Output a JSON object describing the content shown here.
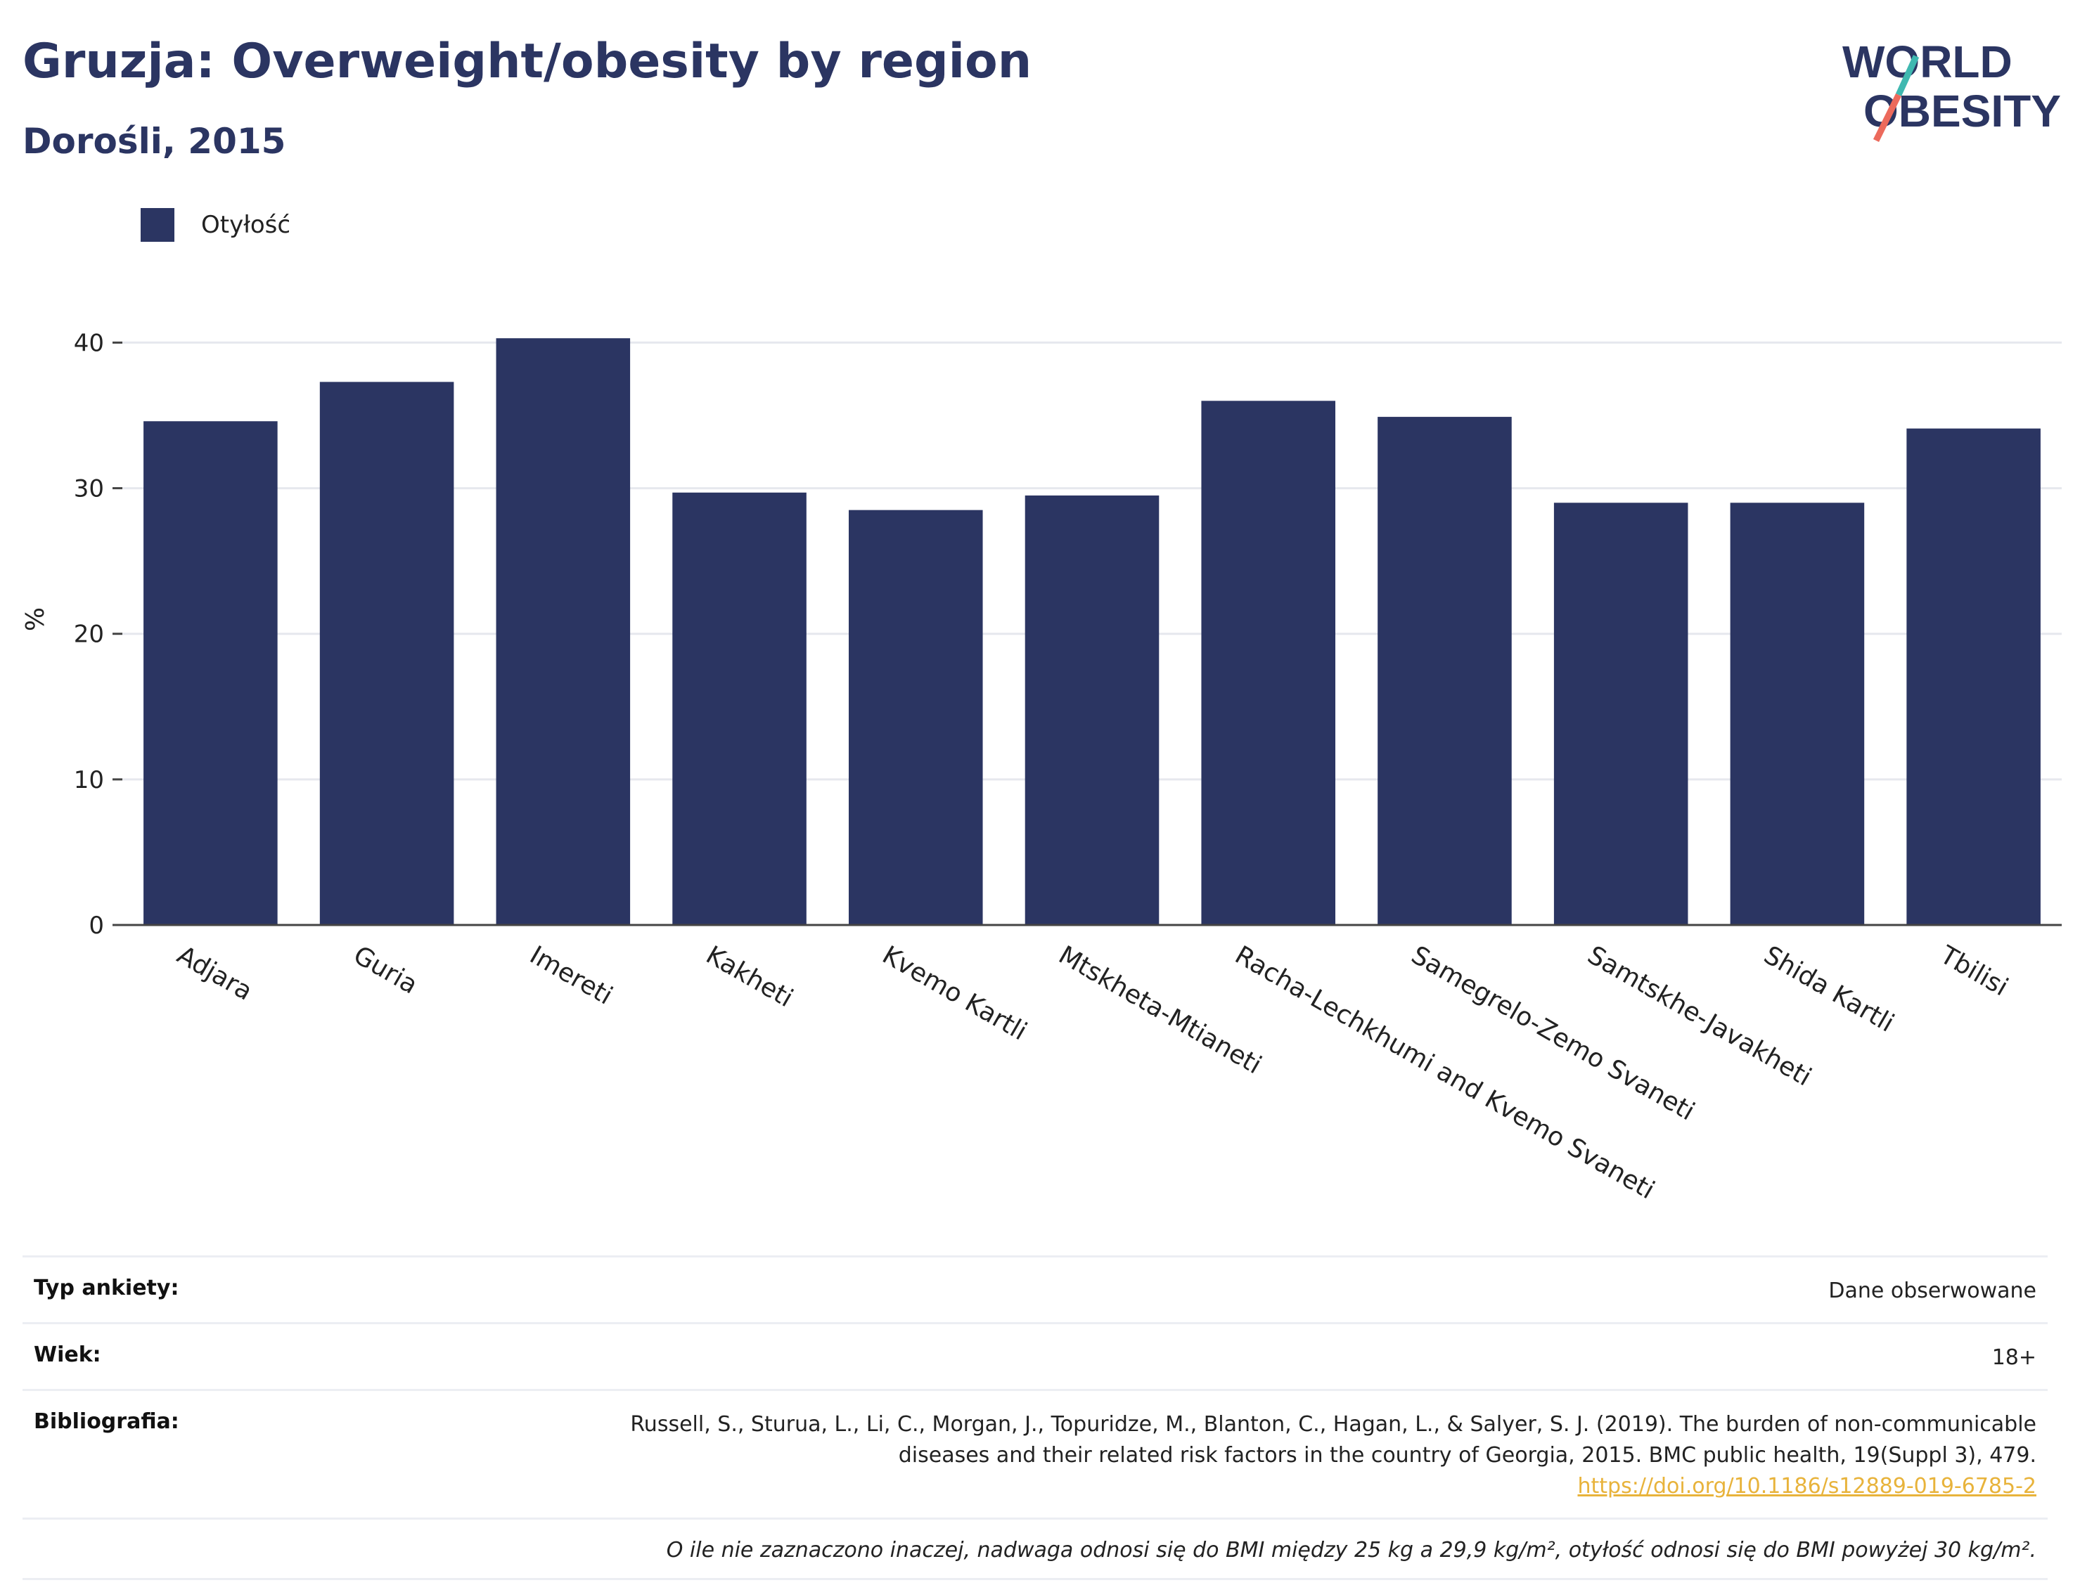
{
  "header": {
    "title": "Gruzja: Overweight/obesity by region",
    "subtitle": "Dorośli, 2015"
  },
  "logo": {
    "line1": "WORLD",
    "line2": "OBESITY",
    "colors": {
      "text": "#2b3562",
      "slash_top": "#3fb8b0",
      "slash_bottom": "#ec6a5c"
    }
  },
  "legend": {
    "label": "Otyłość",
    "color": "#2b3562"
  },
  "chart_data": {
    "type": "bar",
    "categories": [
      "Adjara",
      "Guria",
      "Imereti",
      "Kakheti",
      "Kvemo Kartli",
      "Mtskheta-Mtianeti",
      "Racha-Lechkhumi and Kvemo Svaneti",
      "Samegrelo-Zemo Svaneti",
      "Samtskhe-Javakheti",
      "Shida Kartli",
      "Tbilisi"
    ],
    "series": [
      {
        "name": "Otyłość",
        "values": [
          34.6,
          37.3,
          40.3,
          29.7,
          28.5,
          29.5,
          36.0,
          34.9,
          29.0,
          29.0,
          34.1
        ],
        "color": "#2b3562"
      }
    ],
    "ylabel": "%",
    "ylim": [
      0,
      42
    ],
    "yticks": [
      0,
      10,
      20,
      30,
      40
    ],
    "grid": true,
    "legend_position": "top-left"
  },
  "meta": {
    "survey_type_label": "Typ ankiety:",
    "survey_type_value": "Dane obserwowane",
    "age_label": "Wiek:",
    "age_value": "18+",
    "bibliography_label": "Bibliografia:",
    "bibliography_line1": "Russell, S., Sturua, L., Li, C., Morgan, J., Topuridze, M., Blanton, C., Hagan, L., & Salyer, S. J. (2019). The burden of non-communicable",
    "bibliography_line2": "diseases and their related risk factors in the country of Georgia, 2015. BMC public health, 19(Suppl 3), 479.",
    "bibliography_link": "https://doi.org/10.1186/s12889-019-6785-2",
    "note": "O ile nie zaznaczono inaczej, nadwaga odnosi się do BMI między 25 kg a 29,9 kg/m², otyłość odnosi się do BMI powyżej 30 kg/m²."
  }
}
